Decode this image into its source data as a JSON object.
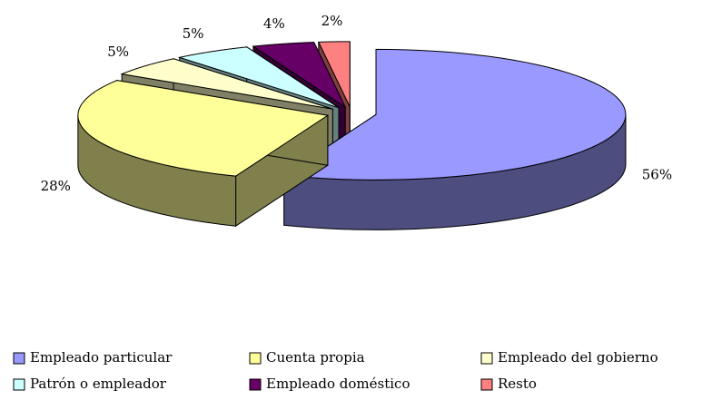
{
  "chart_data": {
    "type": "pie",
    "categories": [
      "Empleado particular",
      "Cuenta propia",
      "Empleado del gobierno",
      "Patrón o empleador",
      "Empleado doméstico",
      "Resto"
    ],
    "values": [
      56,
      28,
      5,
      5,
      4,
      2
    ],
    "value_labels": [
      "56%",
      "28%",
      "5%",
      "5%",
      "4%",
      "2%"
    ],
    "colors": [
      "#9999ff",
      "#ffff99",
      "#ffffcc",
      "#ccffff",
      "#660066",
      "#ff8080"
    ],
    "legend": "bottom"
  }
}
